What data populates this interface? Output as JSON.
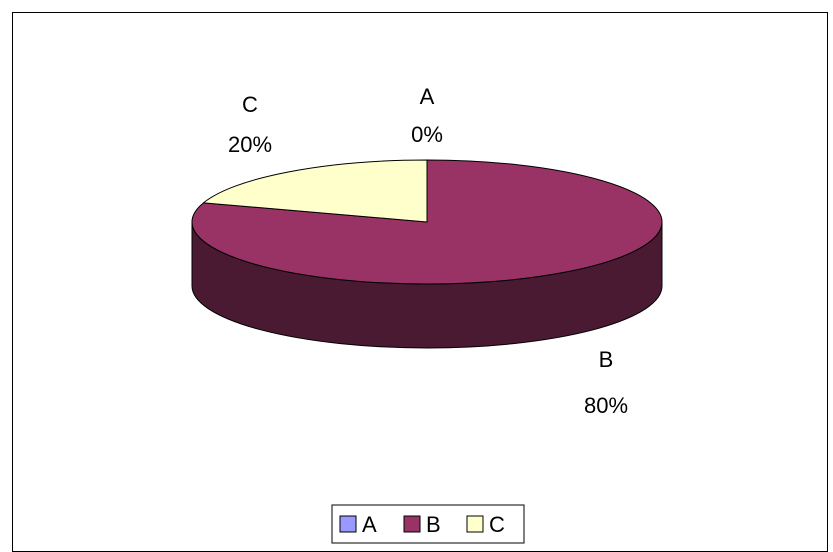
{
  "chart_data": {
    "type": "pie",
    "title": "",
    "labels": [
      "A",
      "B",
      "C"
    ],
    "values": [
      0,
      80,
      20
    ],
    "value_labels": [
      "0%",
      "80%",
      "20%"
    ],
    "colors": [
      "#9999FF",
      "#993366",
      "#FFFFCC"
    ],
    "side_colors": [
      "#5c5c99",
      "#4a1a33",
      "#c9c99e"
    ],
    "legend_position": "bottom"
  }
}
